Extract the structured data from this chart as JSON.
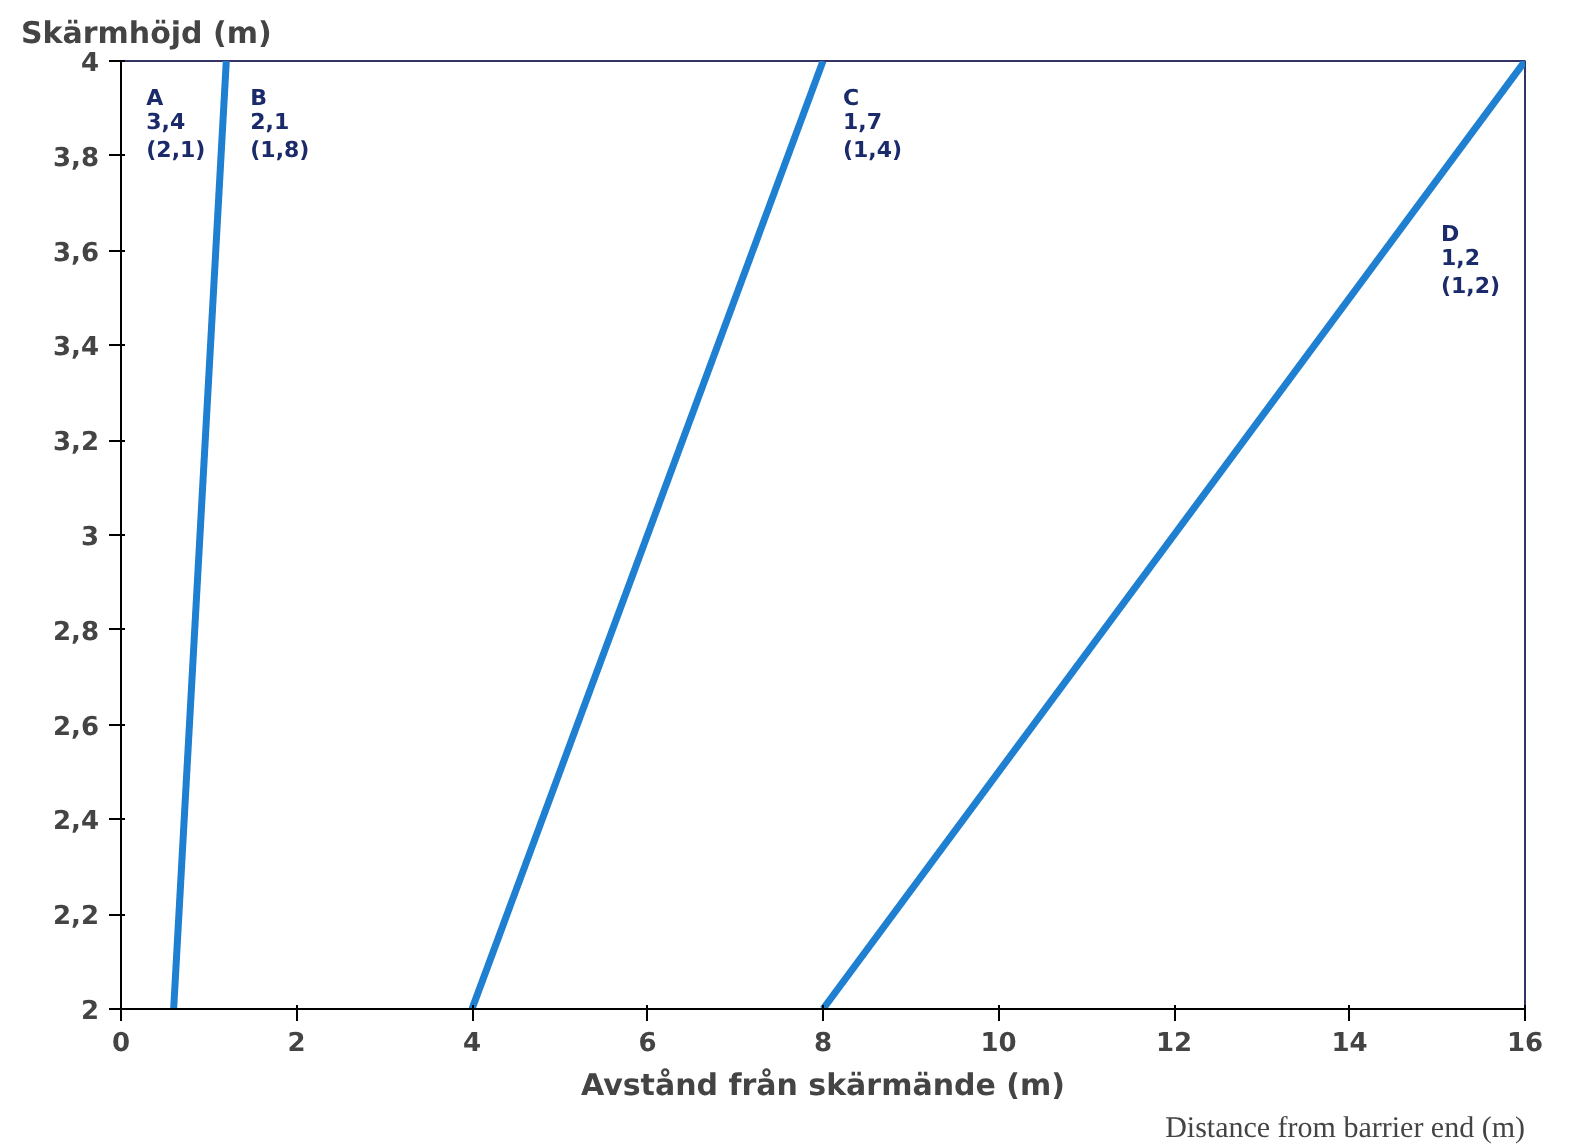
{
  "chart_data": {
    "type": "line",
    "xlabel": "Avstånd från skärmände (m)",
    "ylabel": "Skärmhöjd (m)",
    "xlim": [
      0,
      16
    ],
    "ylim": [
      2,
      4
    ],
    "xticks": [
      0,
      2,
      4,
      6,
      8,
      10,
      12,
      14,
      16
    ],
    "yticks": [
      2,
      {
        "value": 2.2,
        "label": "2,2"
      },
      {
        "value": 2.4,
        "label": "2,4"
      },
      {
        "value": 2.6,
        "label": "2,6"
      },
      {
        "value": 2.8,
        "label": "2,8"
      },
      3,
      {
        "value": 3.2,
        "label": "3,2"
      },
      {
        "value": 3.4,
        "label": "3,4"
      },
      {
        "value": 3.6,
        "label": "3,6"
      },
      {
        "value": 3.8,
        "label": "3,8"
      },
      4
    ],
    "series": [
      {
        "color": "#1f7fd0",
        "x": [
          0.6,
          1.2
        ],
        "values": [
          2,
          4
        ]
      },
      {
        "color": "#1f7fd0",
        "x": [
          4,
          8
        ],
        "values": [
          2,
          4
        ]
      },
      {
        "color": "#1f7fd0",
        "x": [
          8,
          16
        ],
        "values": [
          2,
          4
        ]
      }
    ],
    "annotations": [
      "A\n3,4\n(2,1)",
      "B\n2,1\n(1,8)",
      "C\n1,7\n(1,4)",
      "D\n1,2\n(1,2)",
      "Distance from barrier end (m)"
    ],
    "grid": false,
    "marker": "none",
    "line_style": "solid"
  }
}
